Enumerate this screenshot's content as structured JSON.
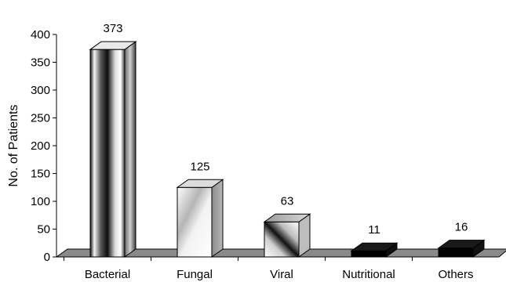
{
  "chart_data": {
    "type": "bar",
    "categories": [
      "Bacterial",
      "Fungal",
      "Viral",
      "Nutritional",
      "Others"
    ],
    "values": [
      373,
      125,
      63,
      11,
      16
    ],
    "data_labels": [
      "373",
      "125",
      "63",
      "11",
      "16"
    ],
    "title": "",
    "xlabel": "",
    "ylabel": "No. of Patients",
    "ylim": [
      0,
      400
    ],
    "yticks": [
      0,
      50,
      100,
      150,
      200,
      250,
      300,
      350,
      400
    ],
    "grid": false,
    "legend": "none",
    "style": "3d-bars",
    "colors": {
      "floor": "#8a8a8a",
      "axis": "#000000",
      "bar_outline": "#000000"
    }
  }
}
